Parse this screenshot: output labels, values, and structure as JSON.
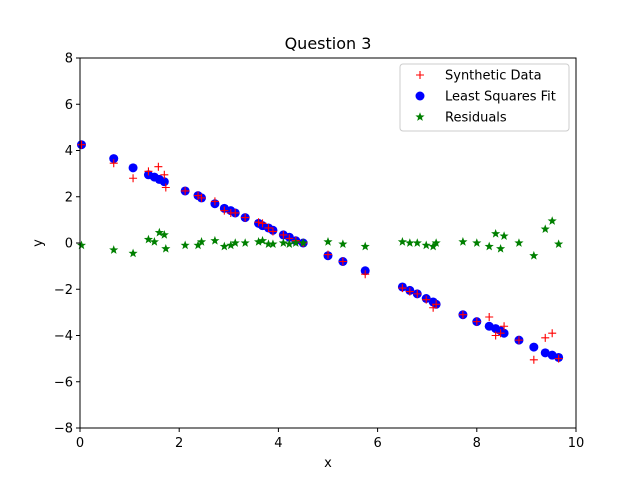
{
  "chart_data": {
    "type": "scatter",
    "title": "Question 3",
    "xlabel": "x",
    "ylabel": "y",
    "xlim": [
      0,
      10
    ],
    "ylim": [
      -8,
      8
    ],
    "xticks": [
      0,
      2,
      4,
      6,
      8,
      10
    ],
    "yticks": [
      -8,
      -6,
      -4,
      -2,
      0,
      2,
      4,
      6,
      8
    ],
    "grid": false,
    "legend_position": "top-right",
    "series": [
      {
        "name": "Synthetic Data",
        "marker": "plus",
        "color": "#ff0000",
        "x": [
          0.03,
          0.68,
          1.07,
          1.38,
          1.58,
          1.7,
          1.73,
          2.12,
          2.38,
          2.45,
          2.72,
          2.91,
          3.04,
          3.13,
          3.33,
          3.6,
          3.68,
          3.8,
          3.89,
          4.1,
          4.22,
          4.35,
          4.5,
          5.0,
          5.3,
          5.75,
          6.5,
          6.65,
          6.8,
          6.98,
          7.12,
          7.18,
          7.72,
          8.0,
          8.25,
          8.38,
          8.48,
          8.55,
          8.85,
          9.15,
          9.38,
          9.52,
          9.65
        ],
        "y": [
          4.25,
          3.45,
          2.8,
          3.1,
          3.3,
          2.95,
          2.4,
          2.25,
          2.05,
          1.95,
          1.8,
          1.4,
          1.3,
          1.3,
          1.1,
          0.9,
          0.85,
          0.65,
          0.5,
          0.35,
          0.2,
          0.1,
          0.0,
          -0.5,
          -0.8,
          -1.35,
          -1.95,
          -2.1,
          -2.2,
          -2.45,
          -2.8,
          -2.65,
          -3.1,
          -3.4,
          -3.2,
          -4.0,
          -3.9,
          -3.6,
          -4.2,
          -5.05,
          -4.1,
          -3.9,
          -5.0
        ]
      },
      {
        "name": "Least Squares Fit",
        "marker": "circle",
        "color": "#0000ff",
        "x": [
          0.03,
          0.68,
          1.07,
          1.38,
          1.5,
          1.6,
          1.7,
          2.12,
          2.38,
          2.45,
          2.72,
          2.91,
          3.04,
          3.13,
          3.33,
          3.6,
          3.68,
          3.8,
          3.89,
          4.1,
          4.22,
          4.35,
          4.5,
          5.0,
          5.3,
          5.75,
          6.5,
          6.65,
          6.8,
          6.98,
          7.12,
          7.18,
          7.72,
          8.0,
          8.25,
          8.38,
          8.48,
          8.55,
          8.85,
          9.15,
          9.38,
          9.52,
          9.65
        ],
        "y": [
          4.25,
          3.65,
          3.25,
          2.95,
          2.85,
          2.75,
          2.65,
          2.25,
          2.05,
          1.95,
          1.7,
          1.5,
          1.4,
          1.3,
          1.1,
          0.85,
          0.75,
          0.65,
          0.55,
          0.35,
          0.25,
          0.1,
          0.0,
          -0.55,
          -0.8,
          -1.2,
          -1.9,
          -2.05,
          -2.2,
          -2.4,
          -2.55,
          -2.65,
          -3.1,
          -3.4,
          -3.6,
          -3.7,
          -3.8,
          -3.9,
          -4.2,
          -4.5,
          -4.75,
          -4.85,
          -4.95
        ]
      },
      {
        "name": "Residuals",
        "marker": "star",
        "color": "#008000",
        "x": [
          0.03,
          0.68,
          1.07,
          1.38,
          1.5,
          1.6,
          1.7,
          1.73,
          2.12,
          2.38,
          2.45,
          2.72,
          2.91,
          3.04,
          3.13,
          3.33,
          3.6,
          3.68,
          3.8,
          3.89,
          4.1,
          4.22,
          4.35,
          4.5,
          5.0,
          5.3,
          5.75,
          6.5,
          6.65,
          6.8,
          6.98,
          7.12,
          7.18,
          7.72,
          8.0,
          8.25,
          8.38,
          8.48,
          8.55,
          8.85,
          9.15,
          9.38,
          9.52,
          9.65
        ],
        "y": [
          -0.1,
          -0.3,
          -0.45,
          0.15,
          0.05,
          0.45,
          0.35,
          -0.25,
          -0.1,
          -0.1,
          0.05,
          0.1,
          -0.15,
          -0.1,
          0.0,
          0.0,
          0.05,
          0.1,
          -0.05,
          -0.05,
          0.0,
          -0.05,
          0.0,
          0.0,
          0.05,
          -0.05,
          -0.15,
          0.05,
          0.0,
          0.0,
          -0.1,
          -0.15,
          0.0,
          0.05,
          0.0,
          -0.15,
          0.4,
          -0.25,
          0.3,
          0.0,
          -0.55,
          0.6,
          0.95,
          -0.05
        ]
      }
    ]
  }
}
